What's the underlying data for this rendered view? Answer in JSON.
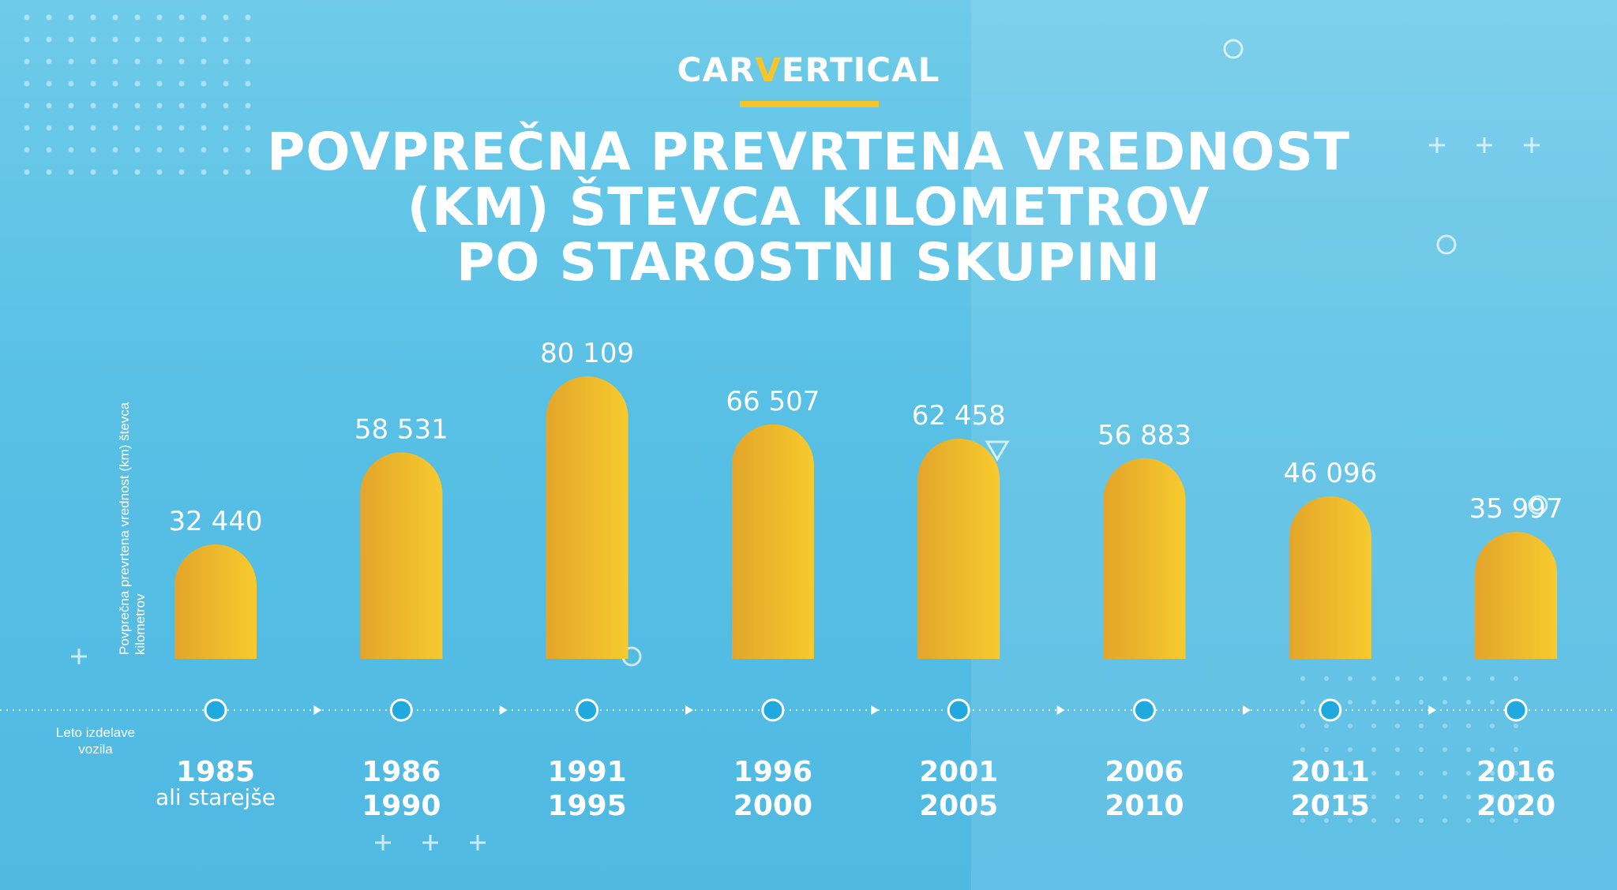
{
  "brand": {
    "prefix": "CAR",
    "accent": "V",
    "suffix": "ERTICAL"
  },
  "title_lines": [
    "POVPREČNA PREVRTENA VREDNOST",
    "(KM) ŠTEVCA KILOMETROV",
    "PO STAROSTNI SKUPINI"
  ],
  "colors": {
    "bar_start": "#e3a52a",
    "bar_end": "#f7cb2e",
    "brand_yellow": "#f6c52b"
  },
  "chart_data": {
    "type": "bar",
    "title": "POVPREČNA PREVRTENA VREDNOST (KM) ŠTEVCA KILOMETROV PO STAROSTNI SKUPINI",
    "ylabel": "Povprečna prevrtena vrednost (km) števca kilometrov",
    "xlabel": "Leto izdelave vozila",
    "ylim": [
      0,
      80109
    ],
    "grid": false,
    "categories": [
      [
        "1985",
        "ali starejše"
      ],
      [
        "1986",
        "1990"
      ],
      [
        "1991",
        "1995"
      ],
      [
        "1996",
        "2000"
      ],
      [
        "2001",
        "2005"
      ],
      [
        "2006",
        "2010"
      ],
      [
        "2011",
        "2015"
      ],
      [
        "2016",
        "2020"
      ]
    ],
    "values": [
      32440,
      58531,
      80109,
      66507,
      62458,
      56883,
      46096,
      35997
    ],
    "value_labels": [
      "32 440",
      "58 531",
      "80 109",
      "66 507",
      "62 458",
      "56 883",
      "46 096",
      "35 997"
    ]
  }
}
